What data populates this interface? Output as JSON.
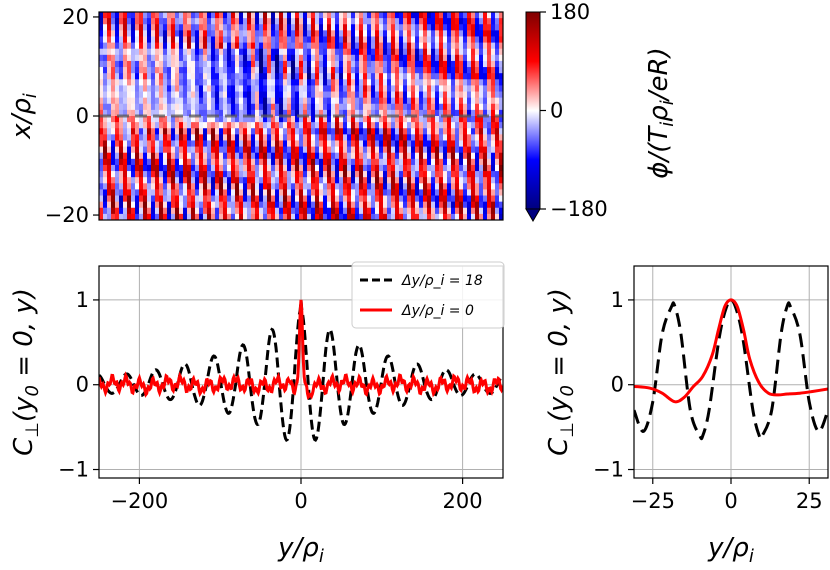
{
  "chart_data": [
    {
      "type": "heatmap",
      "title": "",
      "xlabel": "",
      "ylabel": "x/ρ_i",
      "xlim": [
        -250,
        250
      ],
      "ylim": [
        -21,
        21
      ],
      "yticks": [
        "20",
        "0",
        "−20"
      ],
      "ytick_values": [
        20,
        0,
        -20
      ],
      "dashed_reference_line_y": 0,
      "colorbar": {
        "label": "ϕ/(T_iρ_i/eR)",
        "range": [
          -180,
          180
        ],
        "ticks": [
          "180",
          "0",
          "−180"
        ],
        "tick_values": [
          180,
          0,
          -180
        ],
        "colormap": "seismic",
        "low_color": "#00007f",
        "mid_color": "#ffffff",
        "high_color": "#7f0000"
      }
    },
    {
      "type": "line",
      "title": "",
      "xlabel": "y/ρ_i",
      "ylabel": "C_⊥(y_0 = 0, y)",
      "xlim": [
        -250,
        250
      ],
      "ylim": [
        -1.1,
        1.4
      ],
      "xticks": [
        "−200",
        "0",
        "200"
      ],
      "xtick_values": [
        -200,
        0,
        200
      ],
      "yticks": [
        "1",
        "0",
        "−1"
      ],
      "ytick_values": [
        1,
        0,
        -1
      ],
      "grid": true,
      "legend_position": "top-right",
      "series": [
        {
          "name": "Δy/ρ_i = 18",
          "color": "#000000",
          "style": "dashed",
          "description": "oscillation with period ≈ 36, envelope decaying from 1 at y=0 to ≈0.12 at |y|=250",
          "peak_value": 1.0,
          "period": 36,
          "edge_amplitude": 0.12
        },
        {
          "name": "Δy/ρ_i = 0",
          "color": "#ff0000",
          "style": "solid",
          "description": "sharp peak of 1 at y=0, otherwise noise within ±0.08",
          "peak_value": 1.0
        }
      ]
    },
    {
      "type": "line",
      "title": "",
      "xlabel": "y/ρ_i",
      "ylabel": "C_⊥(y_0 = 0, y)",
      "xlim": [
        -31,
        31
      ],
      "ylim": [
        -1.1,
        1.4
      ],
      "xticks": [
        "−25",
        "0",
        "25"
      ],
      "xtick_values": [
        -25,
        0,
        25
      ],
      "yticks": [
        "1",
        "0",
        "−1"
      ],
      "ytick_values": [
        1,
        0,
        -1
      ],
      "grid": true,
      "series": [
        {
          "name": "Δy/ρ_i = 18",
          "color": "#000000",
          "style": "dashed",
          "x": [
            -31,
            -28,
            -25,
            -22,
            -19,
            -18,
            -16,
            -13,
            -10,
            -9,
            -7,
            -4,
            -2,
            0,
            2,
            4,
            7,
            9,
            10,
            13,
            16,
            18,
            19,
            22,
            25,
            28,
            31
          ],
          "y": [
            -0.3,
            -0.55,
            -0.2,
            0.6,
            0.92,
            0.93,
            0.6,
            -0.3,
            -0.6,
            -0.6,
            -0.3,
            0.5,
            0.85,
            1.0,
            0.85,
            0.5,
            -0.3,
            -0.6,
            -0.6,
            -0.3,
            0.6,
            0.93,
            0.92,
            0.6,
            -0.2,
            -0.55,
            -0.3
          ]
        },
        {
          "name": "Δy/ρ_i = 0",
          "color": "#ff0000",
          "style": "solid",
          "x": [
            -31,
            -26,
            -22,
            -18,
            -15,
            -12,
            -9,
            -6,
            -4,
            -2,
            0,
            2,
            4,
            6,
            9,
            12,
            15,
            18,
            22,
            26,
            31
          ],
          "y": [
            -0.02,
            -0.04,
            -0.1,
            -0.2,
            -0.15,
            -0.02,
            0.1,
            0.35,
            0.65,
            0.92,
            1.0,
            0.92,
            0.65,
            0.3,
            0.02,
            -0.1,
            -0.12,
            -0.11,
            -0.1,
            -0.08,
            -0.05
          ]
        }
      ]
    }
  ]
}
